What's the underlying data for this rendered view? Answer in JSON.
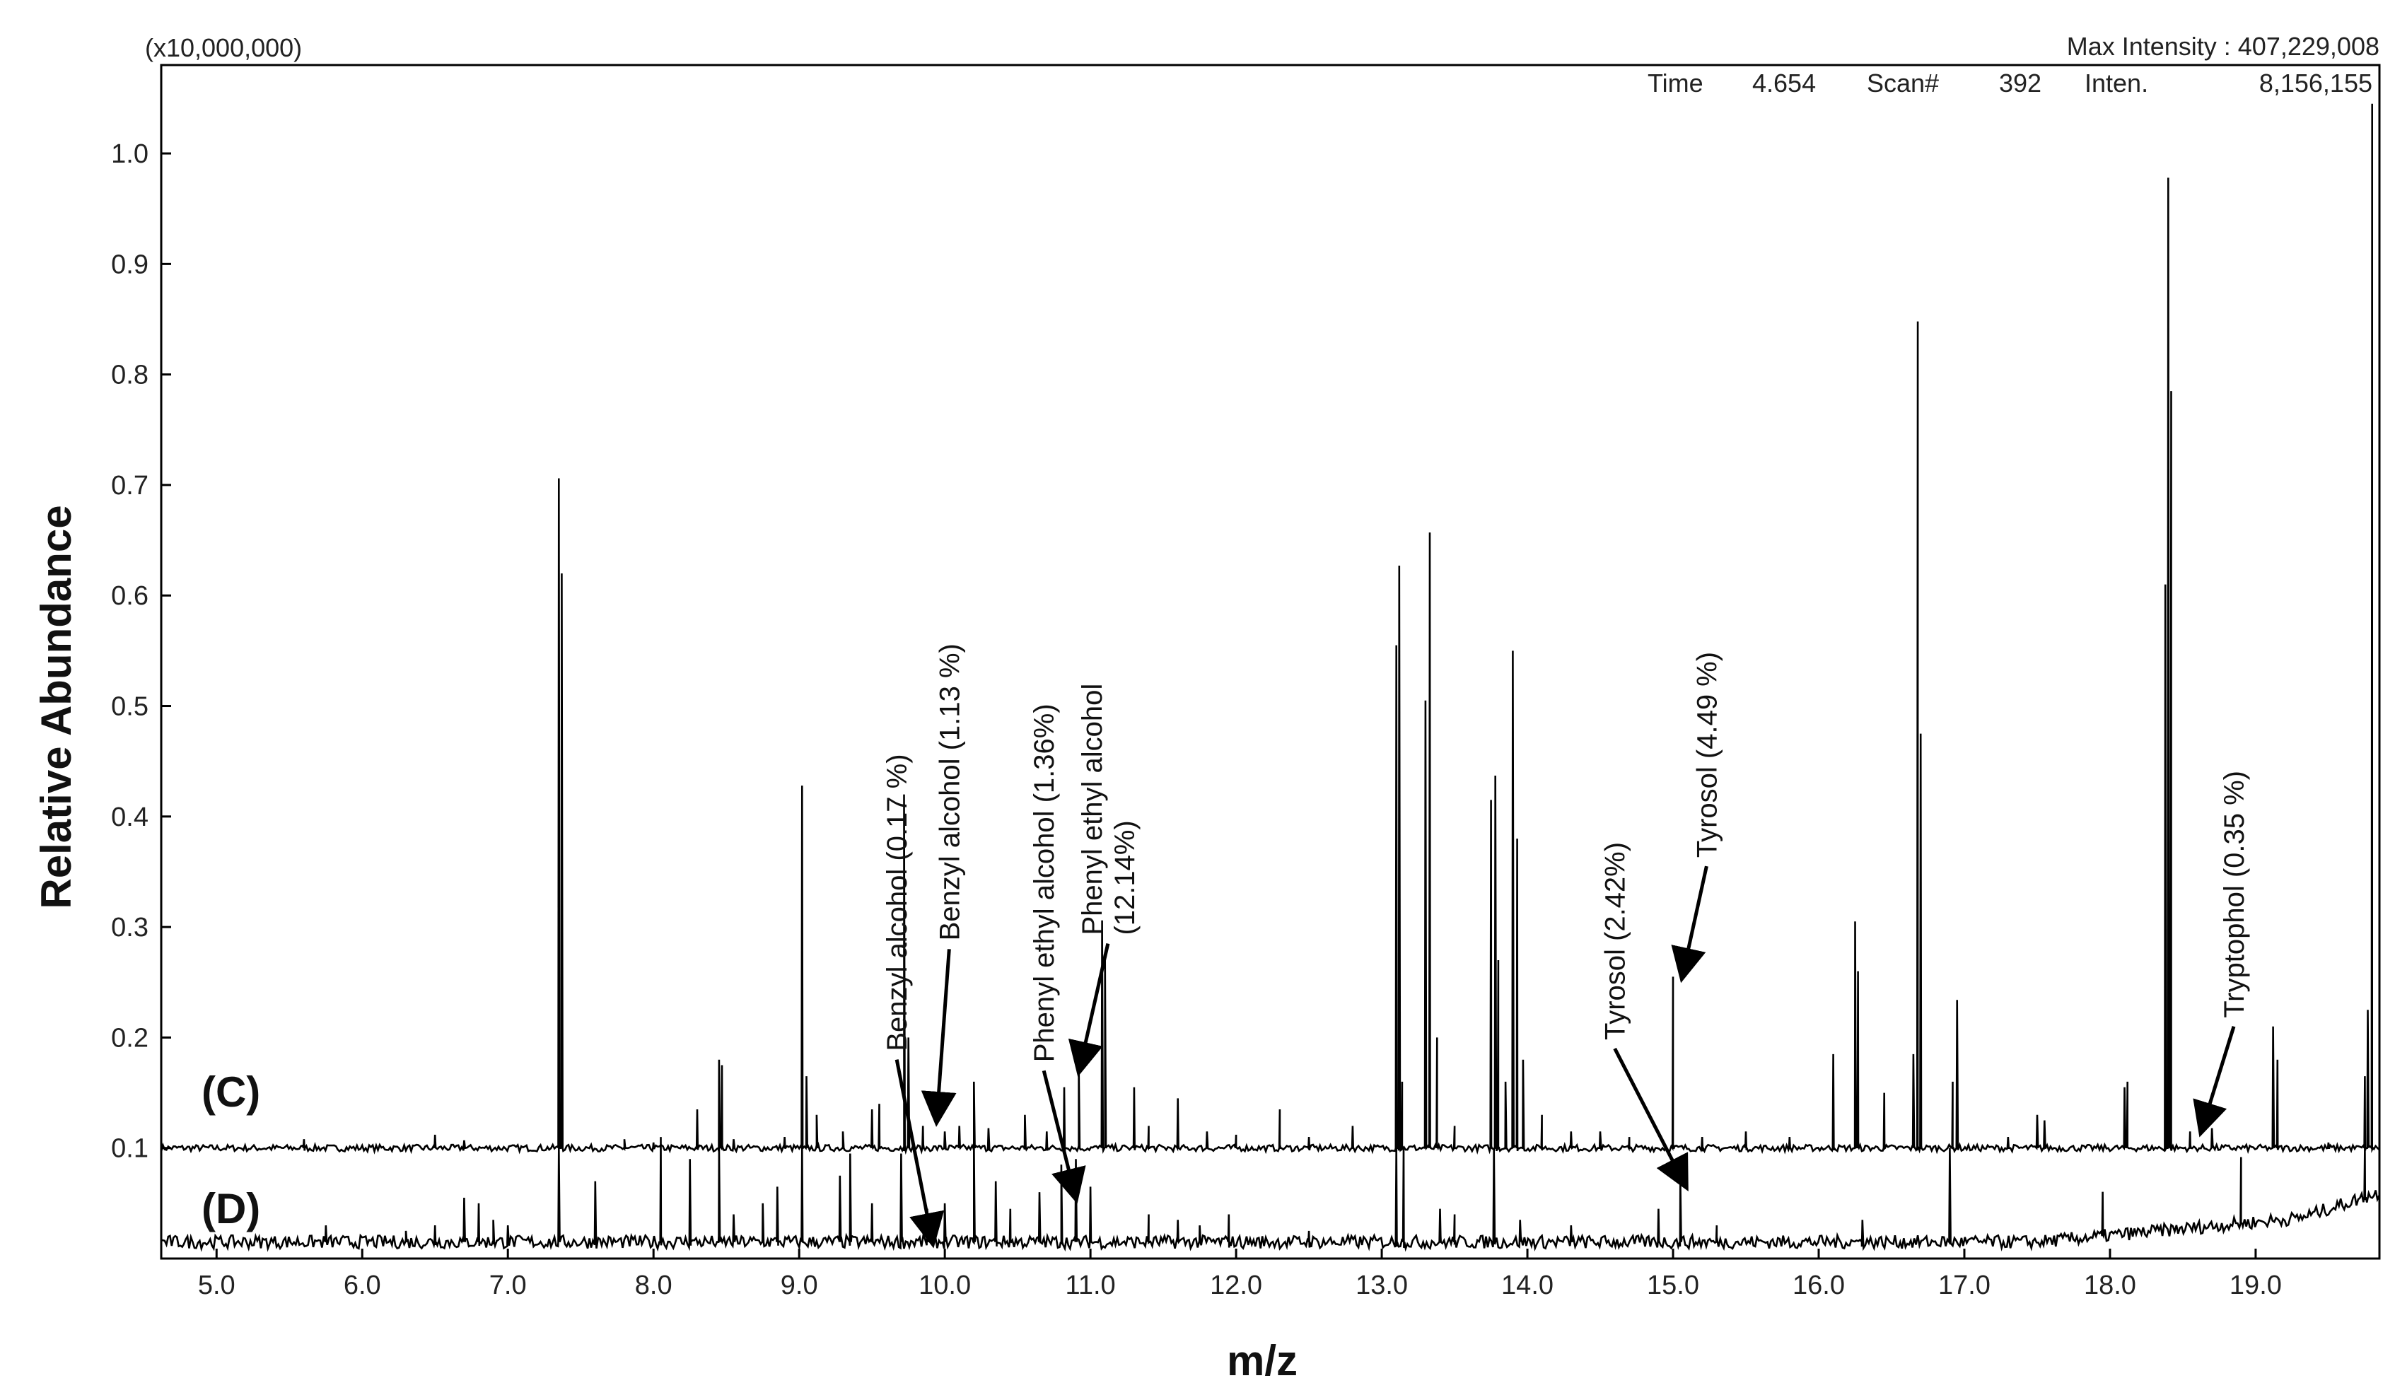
{
  "chart_data": {
    "type": "line",
    "title": "",
    "xlabel": "m/z",
    "ylabel": "Relative Abundance",
    "xlim": [
      4.62,
      19.85
    ],
    "ylim": [
      0.0,
      1.08
    ],
    "x_ticks": [
      5.0,
      6.0,
      7.0,
      8.0,
      9.0,
      10.0,
      11.0,
      12.0,
      13.0,
      14.0,
      15.0,
      16.0,
      17.0,
      18.0,
      19.0
    ],
    "x_tick_labels": [
      "5.0",
      "6.0",
      "7.0",
      "8.0",
      "9.0",
      "10.0",
      "11.0",
      "12.0",
      "13.0",
      "14.0",
      "15.0",
      "16.0",
      "17.0",
      "18.0",
      "19.0"
    ],
    "y_ticks": [
      0.1,
      0.2,
      0.3,
      0.4,
      0.5,
      0.6,
      0.7,
      0.8,
      0.9,
      1.0
    ],
    "y_tick_labels": [
      "0.1",
      "0.2",
      "0.3",
      "0.4",
      "0.5",
      "0.6",
      "0.7",
      "0.8",
      "0.9",
      "1.0"
    ],
    "grid": false,
    "scale_label": "(x10,000,000)",
    "max_intensity": "Max Intensity : 407,229,008",
    "scan_info": {
      "time_label": "Time",
      "time_value": "4.654",
      "scan_label": "Scan#",
      "scan_value": "392",
      "inten_label": "Inten.",
      "inten_value": "8,156,155"
    },
    "series": [
      {
        "name": "(C)",
        "baseline": 0.1,
        "peaks": [
          [
            5.6,
            0.108
          ],
          [
            6.5,
            0.112
          ],
          [
            6.7,
            0.107
          ],
          [
            7.35,
            0.706
          ],
          [
            7.37,
            0.62
          ],
          [
            7.8,
            0.108
          ],
          [
            8.0,
            0.105
          ],
          [
            8.3,
            0.135
          ],
          [
            8.45,
            0.18
          ],
          [
            8.47,
            0.175
          ],
          [
            8.55,
            0.108
          ],
          [
            8.9,
            0.11
          ],
          [
            9.02,
            0.428
          ],
          [
            9.05,
            0.165
          ],
          [
            9.12,
            0.13
          ],
          [
            9.3,
            0.115
          ],
          [
            9.5,
            0.135
          ],
          [
            9.55,
            0.14
          ],
          [
            9.72,
            0.42
          ],
          [
            9.75,
            0.2
          ],
          [
            9.85,
            0.12
          ],
          [
            10.0,
            0.115
          ],
          [
            10.1,
            0.12
          ],
          [
            10.2,
            0.16
          ],
          [
            10.3,
            0.118
          ],
          [
            10.55,
            0.13
          ],
          [
            10.7,
            0.115
          ],
          [
            10.82,
            0.155
          ],
          [
            10.92,
            0.175
          ],
          [
            11.08,
            0.306
          ],
          [
            11.1,
            0.27
          ],
          [
            11.3,
            0.155
          ],
          [
            11.4,
            0.12
          ],
          [
            11.6,
            0.145
          ],
          [
            11.8,
            0.115
          ],
          [
            12.0,
            0.112
          ],
          [
            12.3,
            0.135
          ],
          [
            12.5,
            0.11
          ],
          [
            12.8,
            0.12
          ],
          [
            13.1,
            0.555
          ],
          [
            13.12,
            0.627
          ],
          [
            13.14,
            0.16
          ],
          [
            13.3,
            0.505
          ],
          [
            13.33,
            0.657
          ],
          [
            13.38,
            0.2
          ],
          [
            13.5,
            0.12
          ],
          [
            13.75,
            0.415
          ],
          [
            13.78,
            0.437
          ],
          [
            13.8,
            0.27
          ],
          [
            13.85,
            0.16
          ],
          [
            13.9,
            0.55
          ],
          [
            13.93,
            0.38
          ],
          [
            13.97,
            0.18
          ],
          [
            14.1,
            0.13
          ],
          [
            14.3,
            0.115
          ],
          [
            14.5,
            0.115
          ],
          [
            14.7,
            0.11
          ],
          [
            15.0,
            0.255
          ],
          [
            15.2,
            0.11
          ],
          [
            15.5,
            0.115
          ],
          [
            15.8,
            0.11
          ],
          [
            16.1,
            0.185
          ],
          [
            16.25,
            0.305
          ],
          [
            16.27,
            0.26
          ],
          [
            16.45,
            0.15
          ],
          [
            16.65,
            0.185
          ],
          [
            16.68,
            0.848
          ],
          [
            16.7,
            0.475
          ],
          [
            16.92,
            0.16
          ],
          [
            16.95,
            0.234
          ],
          [
            17.3,
            0.11
          ],
          [
            17.5,
            0.13
          ],
          [
            17.55,
            0.125
          ],
          [
            18.1,
            0.155
          ],
          [
            18.12,
            0.16
          ],
          [
            18.38,
            0.61
          ],
          [
            18.4,
            0.978
          ],
          [
            18.42,
            0.785
          ],
          [
            18.55,
            0.115
          ],
          [
            18.7,
            0.118
          ],
          [
            19.12,
            0.21
          ],
          [
            19.15,
            0.18
          ],
          [
            19.5,
            0.105
          ],
          [
            19.75,
            0.165
          ],
          [
            19.77,
            0.225
          ],
          [
            19.8,
            1.045
          ]
        ]
      },
      {
        "name": "(D)",
        "baseline": 0.015,
        "peaks": [
          [
            5.75,
            0.03
          ],
          [
            6.3,
            0.025
          ],
          [
            6.5,
            0.03
          ],
          [
            6.7,
            0.055
          ],
          [
            6.8,
            0.05
          ],
          [
            6.9,
            0.035
          ],
          [
            7.0,
            0.03
          ],
          [
            7.35,
            0.1
          ],
          [
            7.6,
            0.07
          ],
          [
            8.05,
            0.11
          ],
          [
            8.25,
            0.09
          ],
          [
            8.45,
            0.1
          ],
          [
            8.55,
            0.04
          ],
          [
            8.75,
            0.05
          ],
          [
            8.85,
            0.065
          ],
          [
            9.02,
            0.1
          ],
          [
            9.28,
            0.075
          ],
          [
            9.35,
            0.095
          ],
          [
            9.5,
            0.05
          ],
          [
            9.7,
            0.095
          ],
          [
            9.88,
            0.045
          ],
          [
            10.0,
            0.05
          ],
          [
            10.2,
            0.105
          ],
          [
            10.35,
            0.07
          ],
          [
            10.45,
            0.045
          ],
          [
            10.65,
            0.06
          ],
          [
            10.8,
            0.085
          ],
          [
            10.9,
            0.09
          ],
          [
            11.0,
            0.065
          ],
          [
            11.4,
            0.04
          ],
          [
            11.6,
            0.035
          ],
          [
            11.75,
            0.03
          ],
          [
            11.95,
            0.04
          ],
          [
            12.5,
            0.025
          ],
          [
            13.1,
            0.1
          ],
          [
            13.15,
            0.1
          ],
          [
            13.4,
            0.045
          ],
          [
            13.5,
            0.04
          ],
          [
            13.77,
            0.1
          ],
          [
            13.95,
            0.035
          ],
          [
            14.3,
            0.03
          ],
          [
            14.9,
            0.045
          ],
          [
            15.05,
            0.072
          ],
          [
            15.3,
            0.03
          ],
          [
            16.3,
            0.035
          ],
          [
            16.9,
            0.1
          ],
          [
            17.95,
            0.055
          ],
          [
            18.9,
            0.075
          ],
          [
            19.75,
            0.06
          ]
        ]
      }
    ],
    "series_labels": [
      "(C)",
      "(D)"
    ],
    "annotations": [
      {
        "text": "Benzyl alcohol (0.17 %)",
        "lines": [
          "Benzyl alcohol (0.17 %)"
        ],
        "x": 9.9,
        "y": 0.025,
        "from": [
          9.67,
          0.18
        ]
      },
      {
        "text": "Benzyl alcohol (1.13 %)",
        "lines": [
          "Benzyl alcohol (1.13 %)"
        ],
        "x": 9.95,
        "y": 0.135,
        "from": [
          10.03,
          0.28
        ]
      },
      {
        "text": "Phenyl ethyl alcohol (1.36%)",
        "lines": [
          "Phenyl ethyl alcohol (1.36%)"
        ],
        "x": 10.88,
        "y": 0.065,
        "from": [
          10.68,
          0.17
        ]
      },
      {
        "text": "Phenyl ethyl alcohol (12.14%)",
        "lines": [
          "Phenyl ethyl alcohol",
          "(12.14%)"
        ],
        "x": 10.94,
        "y": 0.18,
        "from": [
          11.12,
          0.285
        ]
      },
      {
        "text": "Tyrosol (2.42%)",
        "lines": [
          "Tyrosol (2.42%)"
        ],
        "x": 15.05,
        "y": 0.075,
        "from": [
          14.6,
          0.19
        ]
      },
      {
        "text": "Tyrosol (4.49 %)",
        "lines": [
          "Tyrosol (4.49 %)"
        ],
        "x": 15.08,
        "y": 0.265,
        "from": [
          15.23,
          0.355
        ]
      },
      {
        "text": "Tryptophol (0.35 %)",
        "lines": [
          "Tryptophol (0.35 %)"
        ],
        "x": 18.65,
        "y": 0.125,
        "from": [
          18.85,
          0.21
        ]
      }
    ]
  }
}
